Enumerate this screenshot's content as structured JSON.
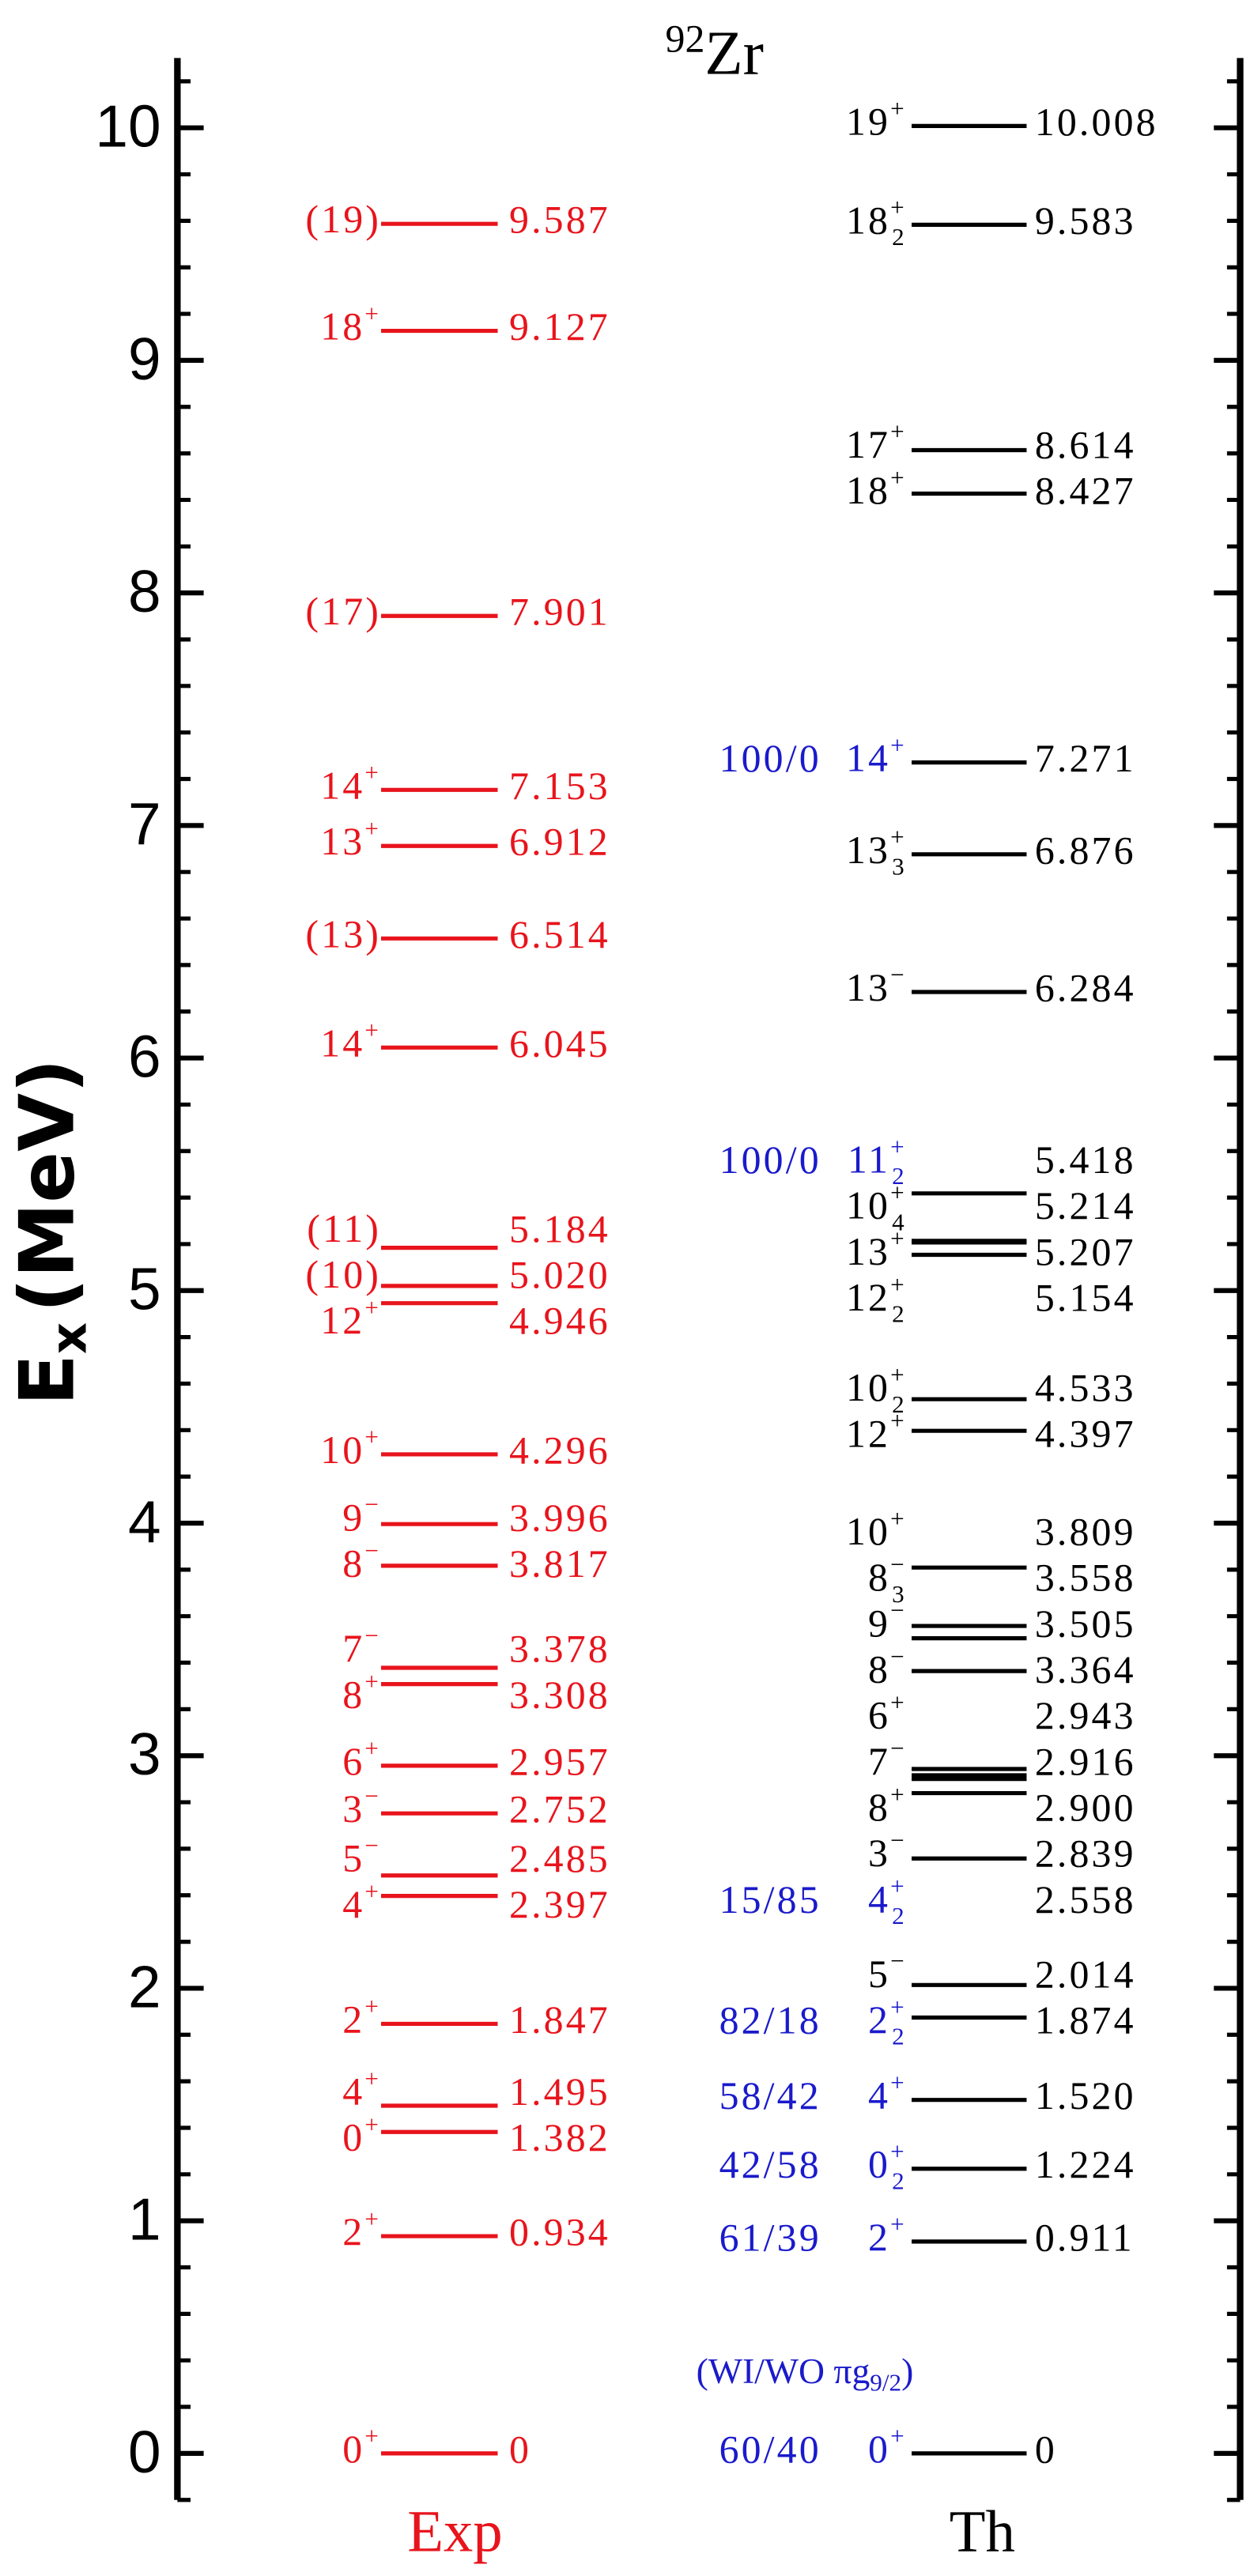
{
  "chart_data": {
    "type": "level",
    "title": {
      "mass": "92",
      "element": "Zr"
    },
    "ylabel": {
      "main": "E",
      "sub": "x",
      "unit": "(MeV)"
    },
    "ylim": [
      -0.2,
      10.3
    ],
    "yticks": [
      0,
      1,
      2,
      3,
      4,
      5,
      6,
      7,
      8,
      9,
      10
    ],
    "yminor": [
      -0.2,
      0.2,
      0.4,
      0.6,
      0.8,
      1.2,
      1.4,
      1.6,
      1.8,
      2.2,
      2.4,
      2.6,
      2.8,
      3.2,
      3.4,
      3.6,
      3.8,
      4.2,
      4.4,
      4.6,
      4.8,
      5.2,
      5.4,
      5.6,
      5.8,
      6.2,
      6.4,
      6.6,
      6.8,
      7.2,
      7.4,
      7.6,
      7.8,
      8.2,
      8.4,
      8.6,
      8.8,
      9.2,
      9.4,
      9.6,
      9.8,
      10.2
    ],
    "ratio_color": "#1a1acc",
    "annotation": {
      "main": "(WI/WO πg",
      "sub": "9/2",
      "end": ")"
    },
    "series": [
      {
        "name": "Exp",
        "color": "#e8141c",
        "values": [
          0,
          0.934,
          1.382,
          1.495,
          1.847,
          2.397,
          2.485,
          2.752,
          2.957,
          3.308,
          3.378,
          3.817,
          3.996,
          4.296,
          4.946,
          5.02,
          5.184,
          6.045,
          6.514,
          6.912,
          7.153,
          7.901,
          9.127,
          9.587
        ],
        "value_labels": [
          "0",
          "0.934",
          "1.382",
          "1.495",
          "1.847",
          "2.397",
          "2.485",
          "2.752",
          "2.957",
          "3.308",
          "3.378",
          "3.817",
          "3.996",
          "4.296",
          "4.946",
          "5.020",
          "5.184",
          "6.045",
          "6.514",
          "6.912",
          "7.153",
          "7.901",
          "9.127",
          "9.587"
        ],
        "spins": [
          {
            "j": "0",
            "p": "+"
          },
          {
            "j": "2",
            "p": "+"
          },
          {
            "j": "0",
            "p": "+"
          },
          {
            "j": "4",
            "p": "+"
          },
          {
            "j": "2",
            "p": "+"
          },
          {
            "j": "4",
            "p": "+"
          },
          {
            "j": "5",
            "p": "−"
          },
          {
            "j": "3",
            "p": "−"
          },
          {
            "j": "6",
            "p": "+"
          },
          {
            "j": "8",
            "p": "+"
          },
          {
            "j": "7",
            "p": "−"
          },
          {
            "j": "8",
            "p": "−"
          },
          {
            "j": "9",
            "p": "−"
          },
          {
            "j": "10",
            "p": "+"
          },
          {
            "j": "12",
            "p": "+"
          },
          {
            "j": "(10)"
          },
          {
            "j": "(11)"
          },
          {
            "j": "14",
            "p": "+"
          },
          {
            "j": "(13)"
          },
          {
            "j": "13",
            "p": "+"
          },
          {
            "j": "14",
            "p": "+"
          },
          {
            "j": "(17)"
          },
          {
            "j": "18",
            "p": "+"
          },
          {
            "j": "(19)"
          }
        ]
      },
      {
        "name": "Th",
        "color": "#000000",
        "values": [
          0,
          0.911,
          1.224,
          1.52,
          1.874,
          2.014,
          2.558,
          2.839,
          2.9,
          2.916,
          2.943,
          3.364,
          3.505,
          3.558,
          3.809,
          4.397,
          4.533,
          5.154,
          5.207,
          5.214,
          5.418,
          6.284,
          6.876,
          7.271,
          8.427,
          8.614,
          9.583,
          10.008
        ],
        "value_labels": [
          "0",
          "0.911",
          "1.224",
          "1.520",
          "1.874",
          "2.014",
          "2.558",
          "2.839",
          "2.900",
          "2.916",
          "2.943",
          "3.364",
          "3.505",
          "3.558",
          "3.809",
          "4.397",
          "4.533",
          "5.154",
          "5.207",
          "5.214",
          "5.418",
          "6.284",
          "6.876",
          "7.271",
          "8.427",
          "8.614",
          "9.583",
          "10.008"
        ],
        "spins": [
          {
            "j": "0",
            "p": "+"
          },
          {
            "j": "2",
            "p": "+"
          },
          {
            "j": "0",
            "sub": "2",
            "p": "+"
          },
          {
            "j": "4",
            "p": "+"
          },
          {
            "j": "2",
            "sub": "2",
            "p": "+"
          },
          {
            "j": "5",
            "p": "−"
          },
          {
            "j": "4",
            "sub": "2",
            "p": "+"
          },
          {
            "j": "3",
            "p": "−"
          },
          {
            "j": "8",
            "p": "+"
          },
          {
            "j": "7",
            "p": "−"
          },
          {
            "j": "6",
            "p": "+"
          },
          {
            "j": "8",
            "p": "−"
          },
          {
            "j": "9",
            "p": "−"
          },
          {
            "j": "8",
            "sub": "3",
            "p": "−"
          },
          {
            "j": "10",
            "p": "+"
          },
          {
            "j": "12",
            "p": "+"
          },
          {
            "j": "10",
            "sub": "2",
            "p": "+"
          },
          {
            "j": "12",
            "sub": "2",
            "p": "+"
          },
          {
            "j": "13",
            "p": "+"
          },
          {
            "j": "10",
            "sub": "4",
            "p": "+"
          },
          {
            "j": "11",
            "sub": "2",
            "p": "+"
          },
          {
            "j": "13",
            "p": "−"
          },
          {
            "j": "13",
            "sub": "3",
            "p": "+"
          },
          {
            "j": "14",
            "p": "+"
          },
          {
            "j": "18",
            "p": "+"
          },
          {
            "j": "17",
            "p": "+"
          },
          {
            "j": "18",
            "sub": "2",
            "p": "+"
          },
          {
            "j": "19",
            "p": "+"
          }
        ],
        "ratios": [
          "60/40",
          "61/39",
          "42/58",
          "58/42",
          "82/18",
          null,
          "15/85",
          null,
          null,
          null,
          null,
          null,
          null,
          null,
          null,
          null,
          null,
          null,
          null,
          null,
          "100/0",
          null,
          null,
          "100/0",
          null,
          null,
          null,
          null
        ]
      }
    ]
  }
}
